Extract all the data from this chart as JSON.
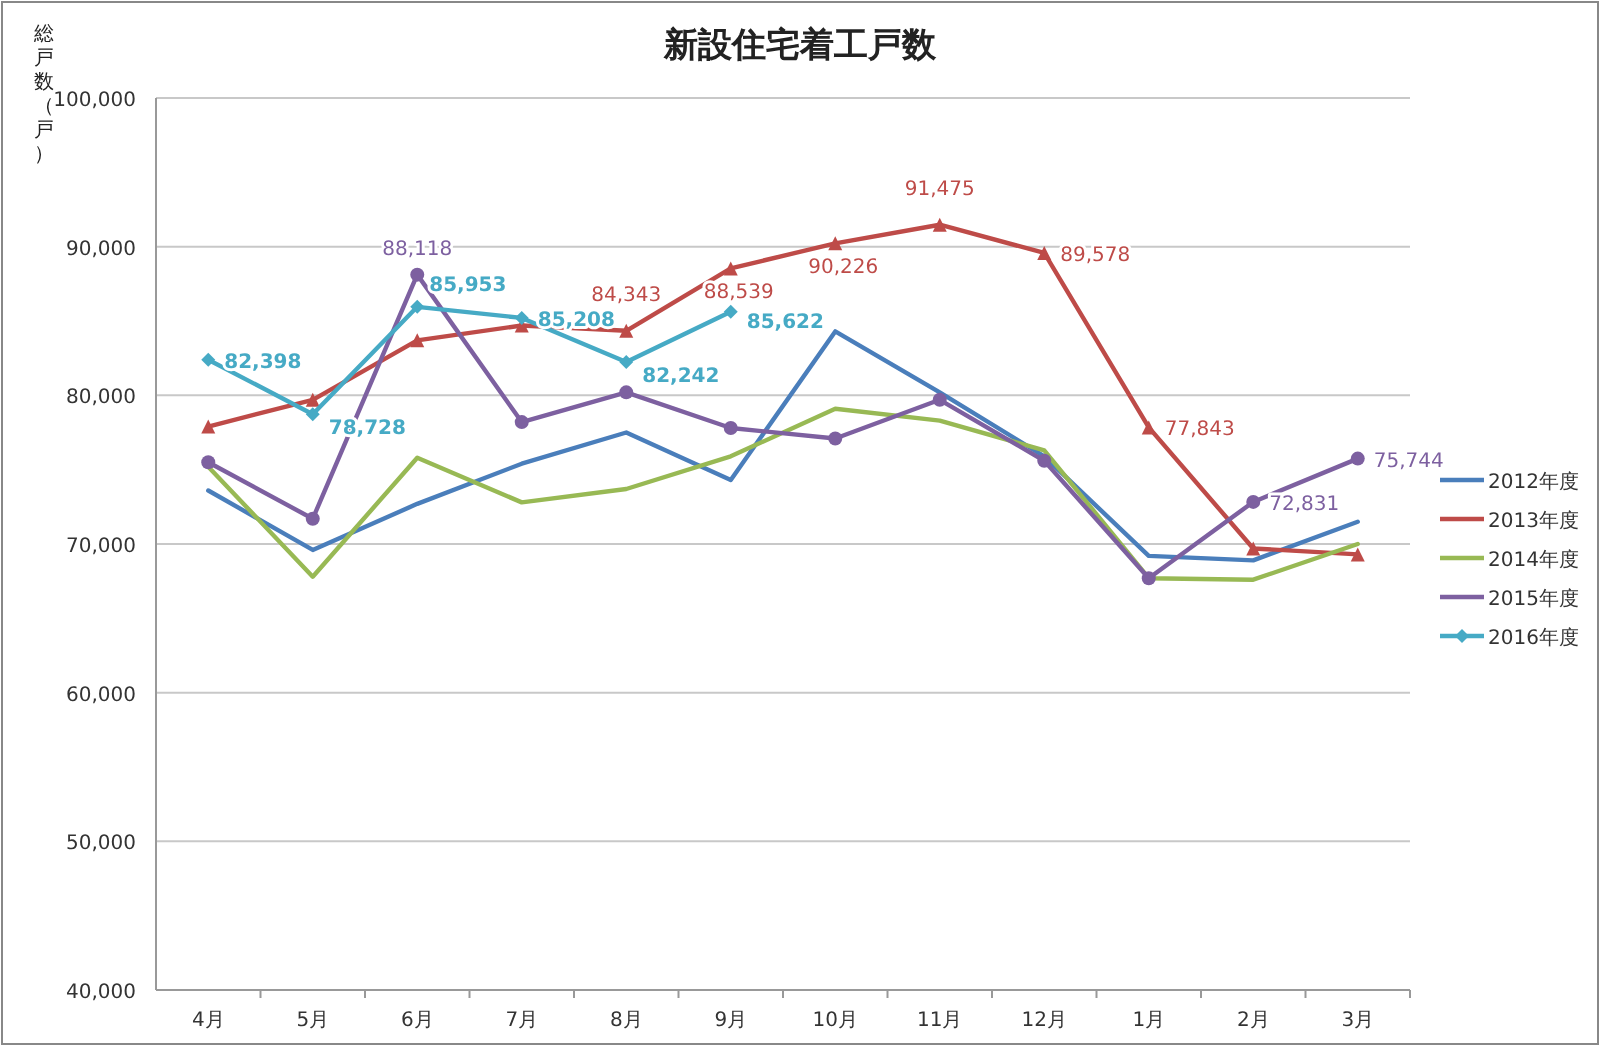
{
  "chart_data": {
    "type": "line",
    "title": "新設住宅着工戸数",
    "ylabel": "総戸数（戸）",
    "categories": [
      "4月",
      "5月",
      "6月",
      "7月",
      "8月",
      "9月",
      "10月",
      "11月",
      "12月",
      "1月",
      "2月",
      "3月"
    ],
    "ylim": [
      40000,
      100000
    ],
    "yticks": [
      {
        "value": 40000,
        "label": "40,000"
      },
      {
        "value": 50000,
        "label": "50,000"
      },
      {
        "value": 60000,
        "label": "60,000"
      },
      {
        "value": 70000,
        "label": "70,000"
      },
      {
        "value": 80000,
        "label": "80,000"
      },
      {
        "value": 90000,
        "label": "90,000"
      },
      {
        "value": 100000,
        "label": "100,000"
      }
    ],
    "grid": "y",
    "legend": "right",
    "series": [
      {
        "name": "2012年度",
        "color": "#4a7ebb",
        "marker": "none",
        "values": [
          73600,
          69600,
          72700,
          75400,
          77500,
          74300,
          84300,
          80200,
          75900,
          69200,
          68900,
          71500
        ]
      },
      {
        "name": "2013年度",
        "color": "#be4b48",
        "marker": "triangle",
        "values": [
          77900,
          79700,
          83700,
          84700,
          84343,
          88539,
          90226,
          91475,
          89578,
          77843,
          69700,
          69300
        ],
        "value_labels": [
          null,
          null,
          null,
          null,
          "84,343",
          "88,539",
          "90,226",
          "91,475",
          "89,578",
          "77,843",
          null,
          null
        ]
      },
      {
        "name": "2014年度",
        "color": "#98b954",
        "marker": "none",
        "values": [
          75200,
          67800,
          75800,
          72800,
          73700,
          75900,
          79100,
          78300,
          76300,
          67700,
          67600,
          70000
        ]
      },
      {
        "name": "2015年度",
        "color": "#7d60a0",
        "marker": "circle",
        "values": [
          75500,
          71700,
          88118,
          78200,
          80200,
          77800,
          77100,
          79700,
          75600,
          67700,
          72831,
          75744
        ],
        "value_labels": [
          null,
          null,
          "88,118",
          null,
          null,
          null,
          null,
          null,
          null,
          null,
          "72,831",
          "75,744"
        ]
      },
      {
        "name": "2016年度",
        "color": "#46aac5",
        "marker": "diamond",
        "values": [
          82398,
          78728,
          85953,
          85208,
          82242,
          85622,
          null,
          null,
          null,
          null,
          null,
          null
        ],
        "value_labels": [
          "82,398",
          "78,728",
          "85,953",
          "85,208",
          "82,242",
          "85,622",
          null,
          null,
          null,
          null,
          null,
          null
        ]
      }
    ]
  }
}
